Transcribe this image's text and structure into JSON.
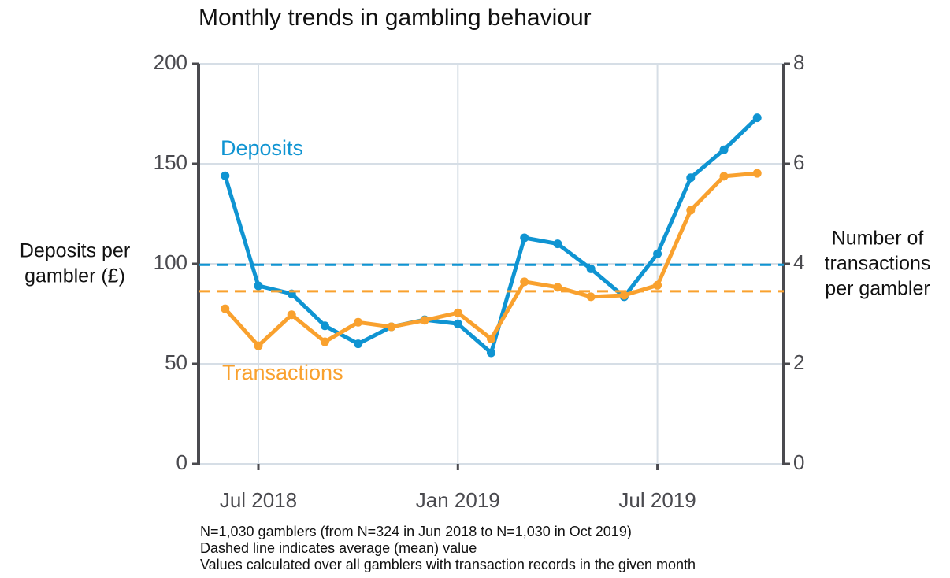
{
  "chart_data": {
    "type": "line",
    "title": "Monthly trends in gambling behaviour",
    "y_label": [
      "Deposits per",
      "gambler (£)"
    ],
    "y2_label": [
      "Number of",
      "transactions",
      "per gambler"
    ],
    "categories": [
      null,
      "Jul 2018",
      null,
      null,
      null,
      null,
      null,
      "Jan 2019",
      null,
      null,
      null,
      null,
      null,
      "Jul 2019",
      null,
      null,
      null
    ],
    "ylim": [
      0,
      200
    ],
    "yticks": [
      0,
      50,
      100,
      150,
      200
    ],
    "y2lim": [
      0,
      8
    ],
    "y2ticks": [
      0,
      2,
      4,
      6,
      8
    ],
    "grid": true,
    "series": [
      {
        "name": "Deposits",
        "color": "#0f94d2",
        "axis": "y",
        "mean": 99.5,
        "values": [
          144,
          89,
          85,
          69,
          60,
          68.5,
          72,
          70,
          55.5,
          113,
          110,
          97.5,
          83.5,
          105,
          143,
          157,
          173
        ]
      },
      {
        "name": "Transactions",
        "color": "#f9a12e",
        "axis": "y2",
        "mean": 3.45,
        "values": [
          3.1,
          2.36,
          2.98,
          2.44,
          2.83,
          2.74,
          2.87,
          3.02,
          2.5,
          3.64,
          3.53,
          3.34,
          3.37,
          3.57,
          5.07,
          5.75,
          5.81
        ]
      }
    ],
    "notes": [
      "N=1,030 gamblers (from N=324 in Jun 2018 to N=1,030 in Oct 2019)",
      "Dashed line indicates average (mean) value",
      "Values calculated over all gamblers with transaction records in the given month"
    ]
  }
}
